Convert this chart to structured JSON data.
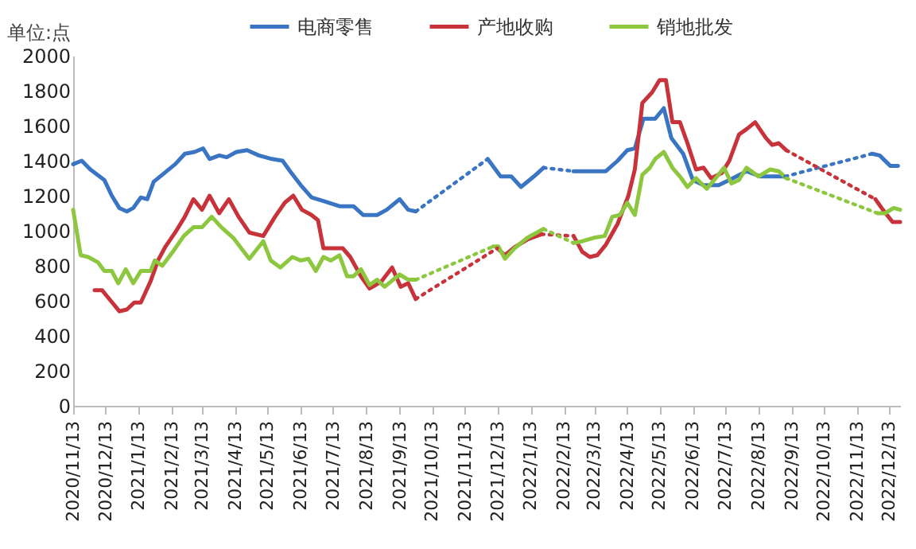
{
  "chart_data": {
    "type": "line",
    "ylabel": "单位:点",
    "legend": "top",
    "ylim": [
      0,
      2000
    ],
    "yticks": [
      0,
      200,
      400,
      600,
      800,
      1000,
      1200,
      1400,
      1600,
      1800,
      2000
    ],
    "xlim": [
      "2020-11-13",
      "2022-12-23"
    ],
    "xticks": [
      {
        "value": "2020-11-13",
        "label": "2020/11/13"
      },
      {
        "value": "2020-12-13",
        "label": "2020/12/13"
      },
      {
        "value": "2021-01-13",
        "label": "2021/1/13"
      },
      {
        "value": "2021-02-13",
        "label": "2021/2/13"
      },
      {
        "value": "2021-03-13",
        "label": "2021/3/13"
      },
      {
        "value": "2021-04-13",
        "label": "2021/4/13"
      },
      {
        "value": "2021-05-13",
        "label": "2021/5/13"
      },
      {
        "value": "2021-06-13",
        "label": "2021/6/13"
      },
      {
        "value": "2021-07-13",
        "label": "2021/7/13"
      },
      {
        "value": "2021-08-13",
        "label": "2021/8/13"
      },
      {
        "value": "2021-09-13",
        "label": "2021/9/13"
      },
      {
        "value": "2021-10-13",
        "label": "2021/10/13"
      },
      {
        "value": "2021-11-13",
        "label": "2021/11/13"
      },
      {
        "value": "2021-12-13",
        "label": "2021/12/13"
      },
      {
        "value": "2022-01-13",
        "label": "2022/1/13"
      },
      {
        "value": "2022-02-13",
        "label": "2022/2/13"
      },
      {
        "value": "2022-03-13",
        "label": "2022/3/13"
      },
      {
        "value": "2022-04-13",
        "label": "2022/4/13"
      },
      {
        "value": "2022-05-13",
        "label": "2022/5/13"
      },
      {
        "value": "2022-06-13",
        "label": "2022/6/13"
      },
      {
        "value": "2022-07-13",
        "label": "2022/7/13"
      },
      {
        "value": "2022-08-13",
        "label": "2022/8/13"
      },
      {
        "value": "2022-09-13",
        "label": "2022/9/13"
      },
      {
        "value": "2022-10-13",
        "label": "2022/10/13"
      },
      {
        "value": "2022-11-13",
        "label": "2022/11/13"
      },
      {
        "value": "2022-12-13",
        "label": "2022/12/13"
      }
    ],
    "series": [
      {
        "name": "电商零售",
        "color": "#3a75c4",
        "x": [
          "2020-11-13",
          "2020-11-21",
          "2020-11-29",
          "2020-12-12",
          "2020-12-19",
          "2020-12-26",
          "2021-01-02",
          "2021-01-08",
          "2021-01-15",
          "2021-01-21",
          "2021-01-27",
          "2021-02-04",
          "2021-02-16",
          "2021-02-25",
          "2021-03-06",
          "2021-03-14",
          "2021-03-20",
          "2021-03-29",
          "2021-04-05",
          "2021-04-14",
          "2021-04-24",
          "2021-05-05",
          "2021-05-17",
          "2021-05-27",
          "2021-06-03",
          "2021-06-13",
          "2021-06-23",
          "2021-07-04",
          "2021-07-19",
          "2021-08-01",
          "2021-08-10",
          "2021-08-23",
          "2021-09-01",
          "2021-09-13",
          "2021-09-21",
          "2021-09-28",
          "2021-12-04",
          "2021-12-16",
          "2021-12-26",
          "2022-01-04",
          "2022-01-16",
          "2022-01-25",
          "2022-02-22",
          "2022-03-10",
          "2022-03-24",
          "2022-04-04",
          "2022-04-13",
          "2022-04-20",
          "2022-04-28",
          "2022-05-09",
          "2022-05-17",
          "2022-05-24",
          "2022-06-04",
          "2022-06-13",
          "2022-06-23",
          "2022-07-07",
          "2022-07-17",
          "2022-08-02",
          "2022-08-15",
          "2022-09-07",
          "2022-11-27",
          "2022-12-04",
          "2022-12-14",
          "2022-12-21"
        ],
        "values": [
          1380,
          1400,
          1350,
          1290,
          1200,
          1130,
          1110,
          1130,
          1190,
          1180,
          1280,
          1320,
          1380,
          1440,
          1450,
          1470,
          1410,
          1430,
          1420,
          1450,
          1460,
          1430,
          1410,
          1400,
          1340,
          1260,
          1190,
          1170,
          1140,
          1140,
          1090,
          1090,
          1120,
          1180,
          1120,
          1110,
          1410,
          1310,
          1310,
          1250,
          1310,
          1360,
          1340,
          1340,
          1340,
          1400,
          1460,
          1470,
          1640,
          1640,
          1700,
          1530,
          1440,
          1290,
          1260,
          1260,
          1290,
          1340,
          1310,
          1310,
          1440,
          1430,
          1370,
          1370
        ]
      },
      {
        "name": "产地收购",
        "color": "#c8323a",
        "x": [
          "2020-12-03",
          "2020-12-10",
          "2020-12-18",
          "2020-12-26",
          "2021-01-02",
          "2021-01-09",
          "2021-01-15",
          "2021-01-24",
          "2021-01-31",
          "2021-02-07",
          "2021-02-16",
          "2021-02-25",
          "2021-03-05",
          "2021-03-13",
          "2021-03-20",
          "2021-03-29",
          "2021-04-07",
          "2021-04-16",
          "2021-04-26",
          "2021-05-09",
          "2021-05-20",
          "2021-05-29",
          "2021-06-06",
          "2021-06-14",
          "2021-06-23",
          "2021-06-29",
          "2021-07-04",
          "2021-07-22",
          "2021-07-29",
          "2021-08-08",
          "2021-08-16",
          "2021-08-27",
          "2021-09-06",
          "2021-09-14",
          "2021-09-21",
          "2021-09-28",
          "2021-12-13",
          "2021-12-20",
          "2021-12-30",
          "2022-01-10",
          "2022-01-23",
          "2022-02-22",
          "2022-03-02",
          "2022-03-09",
          "2022-03-16",
          "2022-03-24",
          "2022-04-04",
          "2022-04-14",
          "2022-04-20",
          "2022-04-27",
          "2022-05-06",
          "2022-05-13",
          "2022-05-19",
          "2022-05-25",
          "2022-06-01",
          "2022-06-08",
          "2022-06-16",
          "2022-06-23",
          "2022-06-30",
          "2022-07-10",
          "2022-07-17",
          "2022-07-26",
          "2022-08-02",
          "2022-08-10",
          "2022-08-20",
          "2022-08-26",
          "2022-09-01",
          "2022-09-08",
          "2022-11-30",
          "2022-12-07",
          "2022-12-16",
          "2022-12-23"
        ],
        "values": [
          660,
          660,
          600,
          540,
          550,
          590,
          590,
          710,
          830,
          910,
          990,
          1080,
          1180,
          1120,
          1200,
          1100,
          1180,
          1080,
          990,
          970,
          1080,
          1160,
          1200,
          1120,
          1090,
          1060,
          900,
          900,
          850,
          740,
          670,
          710,
          790,
          680,
          700,
          610,
          900,
          860,
          910,
          950,
          980,
          970,
          880,
          850,
          860,
          920,
          1040,
          1200,
          1350,
          1730,
          1790,
          1860,
          1860,
          1620,
          1620,
          1500,
          1350,
          1360,
          1300,
          1330,
          1400,
          1550,
          1580,
          1620,
          1530,
          1490,
          1500,
          1460,
          1180,
          1120,
          1050,
          1050
        ]
      },
      {
        "name": "销地批发",
        "color": "#8dc63f",
        "x": [
          "2020-11-13",
          "2020-11-20",
          "2020-11-27",
          "2020-12-06",
          "2020-12-12",
          "2020-12-19",
          "2020-12-25",
          "2021-01-01",
          "2021-01-08",
          "2021-01-15",
          "2021-01-24",
          "2021-01-28",
          "2021-02-04",
          "2021-02-15",
          "2021-02-24",
          "2021-03-05",
          "2021-03-13",
          "2021-03-22",
          "2021-03-31",
          "2021-04-11",
          "2021-04-26",
          "2021-05-09",
          "2021-05-16",
          "2021-05-25",
          "2021-06-05",
          "2021-06-13",
          "2021-06-20",
          "2021-06-27",
          "2021-07-04",
          "2021-07-11",
          "2021-07-19",
          "2021-07-26",
          "2021-08-01",
          "2021-08-08",
          "2021-08-16",
          "2021-08-23",
          "2021-08-30",
          "2021-09-13",
          "2021-09-21",
          "2021-09-28",
          "2021-12-09",
          "2021-12-14",
          "2021-12-20",
          "2021-12-29",
          "2022-01-10",
          "2022-01-25",
          "2022-02-22",
          "2022-03-02",
          "2022-03-13",
          "2022-03-23",
          "2022-03-30",
          "2022-04-06",
          "2022-04-13",
          "2022-04-20",
          "2022-04-27",
          "2022-05-04",
          "2022-05-09",
          "2022-05-17",
          "2022-05-25",
          "2022-06-01",
          "2022-06-08",
          "2022-06-16",
          "2022-06-26",
          "2022-07-03",
          "2022-07-12",
          "2022-07-19",
          "2022-07-26",
          "2022-08-02",
          "2022-08-13",
          "2022-08-24",
          "2022-09-01",
          "2022-09-08",
          "2022-12-02",
          "2022-12-09",
          "2022-12-17",
          "2022-12-23"
        ],
        "values": [
          1120,
          860,
          850,
          820,
          770,
          770,
          700,
          780,
          700,
          770,
          770,
          830,
          800,
          890,
          970,
          1020,
          1020,
          1080,
          1020,
          960,
          840,
          940,
          830,
          790,
          850,
          830,
          840,
          770,
          850,
          830,
          860,
          740,
          740,
          780,
          690,
          720,
          680,
          750,
          720,
          720,
          910,
          910,
          840,
          900,
          960,
          1010,
          930,
          940,
          960,
          970,
          1080,
          1090,
          1160,
          1090,
          1320,
          1360,
          1410,
          1450,
          1360,
          1310,
          1250,
          1300,
          1240,
          1290,
          1360,
          1270,
          1290,
          1360,
          1310,
          1350,
          1340,
          1300,
          1100,
          1100,
          1130,
          1120
        ]
      }
    ]
  }
}
